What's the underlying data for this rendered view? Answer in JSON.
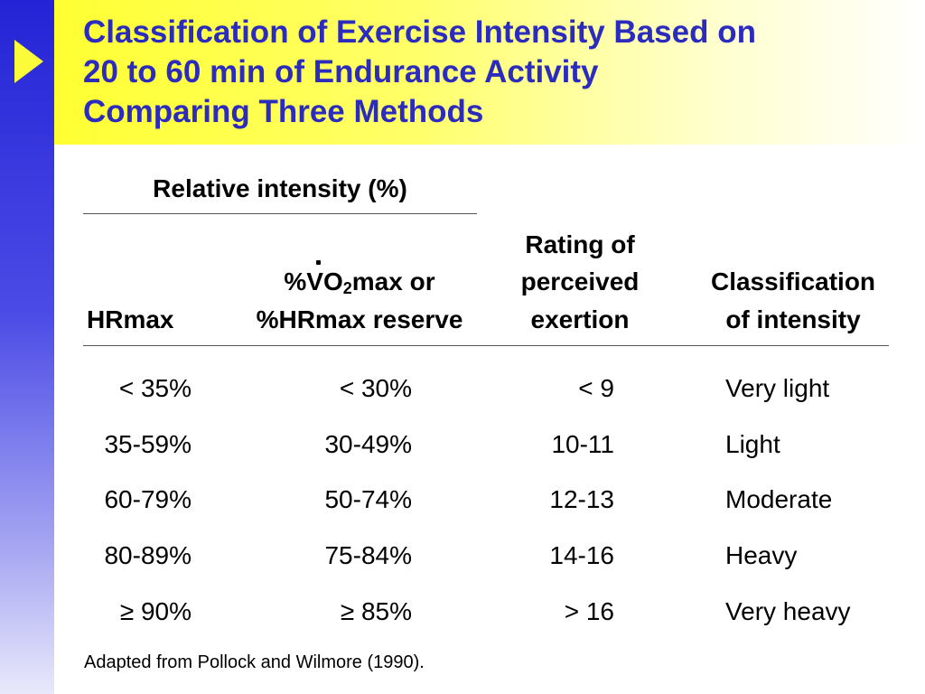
{
  "title": {
    "line1": "Classification of Exercise Intensity Based on",
    "line2": "20 to 60 min of Endurance Activity",
    "line3": "Comparing Three Methods"
  },
  "table": {
    "group_header": "Relative intensity (%)",
    "headers": {
      "hrmax": "HRmax",
      "vo2_pre": "%",
      "vo2_v": "V",
      "vo2_o": "O",
      "vo2_sub": "2",
      "vo2_post": "max or",
      "vo2_line2": "%HRmax reserve",
      "rpe_line1": "Rating of",
      "rpe_line2": "perceived",
      "rpe_line3": "exertion",
      "class_line1": "Classification",
      "class_line2": "of intensity"
    },
    "rows": [
      {
        "hrmax": "< 35%",
        "vo2": "< 30%",
        "rpe": "< 9",
        "classification": "Very light"
      },
      {
        "hrmax": "35-59%",
        "vo2": "30-49%",
        "rpe": "10-11",
        "classification": "Light"
      },
      {
        "hrmax": "60-79%",
        "vo2": "50-74%",
        "rpe": "12-13",
        "classification": "Moderate"
      },
      {
        "hrmax": "80-89%",
        "vo2": "75-84%",
        "rpe": "14-16",
        "classification": "Heavy"
      },
      {
        "hrmax": "≥ 90%",
        "vo2": "≥ 85%",
        "rpe": "> 16",
        "classification": "Very heavy"
      }
    ]
  },
  "footnote": "Adapted from Pollock and Wilmore (1990).",
  "colors": {
    "title": "#2b2bbd",
    "sidebar": "#2424d6",
    "arrow": "#fbfb3a",
    "band": "#ffff33"
  },
  "icons": {
    "bullet": "play-arrow-icon"
  }
}
